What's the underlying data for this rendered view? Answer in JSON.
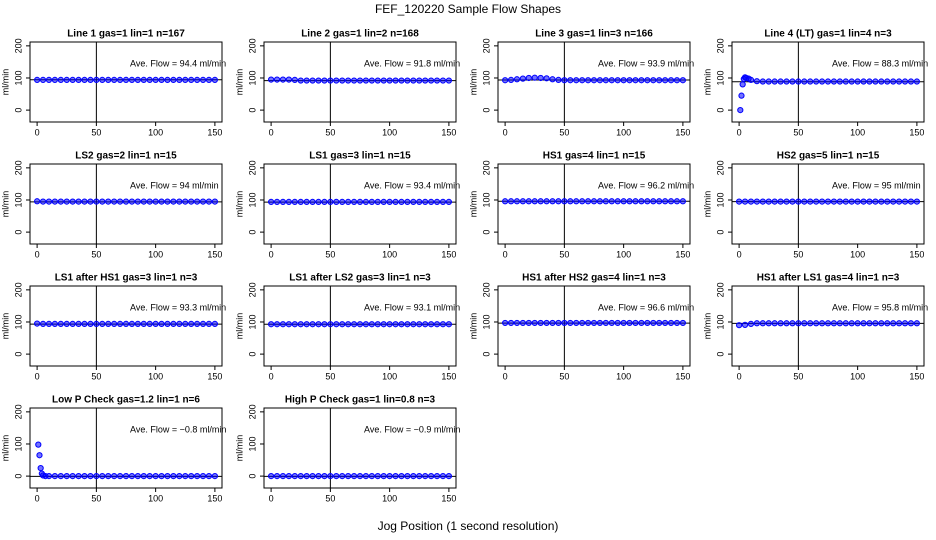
{
  "title": "FEF_120220  Sample Flow Shapes",
  "xlabel": "Jog Position (1 second resolution)",
  "chart_data": [
    {
      "type": "scatter",
      "title": "Line 1 gas=1 lin=1 n=167",
      "annotation": "Ave. Flow = 94.4  ml/min",
      "hline": 94.4,
      "vline": 50,
      "ylabel": "ml/min",
      "color": "#0000ff",
      "x": [
        0,
        5,
        10,
        15,
        20,
        25,
        30,
        35,
        40,
        45,
        50,
        55,
        60,
        65,
        70,
        75,
        80,
        85,
        90,
        95,
        100,
        105,
        110,
        115,
        120,
        125,
        130,
        135,
        140,
        145,
        150
      ],
      "y": [
        94,
        94,
        94,
        94,
        94,
        94,
        94,
        94,
        94,
        94,
        94,
        94,
        94,
        94,
        94,
        94,
        94,
        94,
        94,
        94,
        94,
        94,
        94,
        94,
        94,
        94,
        94,
        94,
        94,
        94,
        94
      ],
      "xlim": [
        -6,
        156
      ],
      "ylim": [
        -37,
        212
      ],
      "xticks": [
        0,
        50,
        100,
        150
      ],
      "yticks": [
        0,
        100,
        200
      ]
    },
    {
      "type": "scatter",
      "title": "Line 2 gas=1 lin=2 n=168",
      "annotation": "Ave. Flow = 91.8  ml/min",
      "hline": 91.8,
      "vline": 50,
      "ylabel": "ml/min",
      "color": "#0000ff",
      "x": [
        0,
        5,
        10,
        15,
        20,
        25,
        30,
        35,
        40,
        45,
        50,
        55,
        60,
        65,
        70,
        75,
        80,
        85,
        90,
        95,
        100,
        105,
        110,
        115,
        120,
        125,
        130,
        135,
        140,
        145,
        150
      ],
      "y": [
        95,
        95,
        95,
        95,
        94,
        92,
        92,
        92,
        92,
        92,
        92,
        92,
        92,
        92,
        92,
        92,
        92,
        92,
        92,
        92,
        92,
        92,
        92,
        92,
        92,
        92,
        92,
        92,
        92,
        92,
        92
      ],
      "xlim": [
        -6,
        156
      ],
      "ylim": [
        -37,
        212
      ],
      "xticks": [
        0,
        50,
        100,
        150
      ],
      "yticks": [
        0,
        100,
        200
      ]
    },
    {
      "type": "scatter",
      "title": "Line 3 gas=1 lin=3 n=166",
      "annotation": "Ave. Flow = 93.9  ml/min",
      "hline": 93.9,
      "vline": 50,
      "ylabel": "ml/min",
      "color": "#0000ff",
      "x": [
        0,
        5,
        10,
        15,
        20,
        25,
        30,
        35,
        40,
        45,
        50,
        55,
        60,
        65,
        70,
        75,
        80,
        85,
        90,
        95,
        100,
        105,
        110,
        115,
        120,
        125,
        130,
        135,
        140,
        145,
        150
      ],
      "y": [
        93,
        94,
        96,
        98,
        100,
        101,
        100,
        99,
        96,
        94,
        93,
        93,
        93,
        93,
        93,
        93,
        93,
        93,
        93,
        93,
        93,
        93,
        93,
        93,
        93,
        93,
        93,
        93,
        93,
        93,
        93
      ],
      "xlim": [
        -6,
        156
      ],
      "ylim": [
        -37,
        212
      ],
      "xticks": [
        0,
        50,
        100,
        150
      ],
      "yticks": [
        0,
        100,
        200
      ]
    },
    {
      "type": "scatter",
      "title": "Line 4 (LT) gas=1 lin=4 n=3",
      "annotation": "Ave. Flow = 88.3  ml/min",
      "hline": 88.3,
      "vline": 50,
      "ylabel": "ml/min",
      "color": "#0000ff",
      "x": [
        1,
        2,
        3,
        4,
        5,
        6,
        8,
        10,
        15,
        20,
        25,
        30,
        35,
        40,
        45,
        50,
        55,
        60,
        65,
        70,
        75,
        80,
        85,
        90,
        95,
        100,
        105,
        110,
        115,
        120,
        125,
        130,
        135,
        140,
        145,
        150
      ],
      "y": [
        0,
        45,
        80,
        97,
        102,
        100,
        98,
        94,
        90,
        89,
        89,
        89,
        89,
        89,
        89,
        89,
        89,
        89,
        89,
        89,
        89,
        89,
        89,
        89,
        89,
        89,
        89,
        89,
        89,
        89,
        89,
        89,
        89,
        89,
        89,
        89
      ],
      "xlim": [
        -6,
        156
      ],
      "ylim": [
        -37,
        212
      ],
      "xticks": [
        0,
        50,
        100,
        150
      ],
      "yticks": [
        0,
        100,
        200
      ]
    },
    {
      "type": "scatter",
      "title": "LS2 gas=2 lin=1 n=15",
      "annotation": "Ave. Flow = 94  ml/min",
      "hline": 94,
      "vline": 50,
      "ylabel": "ml/min",
      "color": "#0000ff",
      "x": [
        0,
        5,
        10,
        15,
        20,
        25,
        30,
        35,
        40,
        45,
        50,
        55,
        60,
        65,
        70,
        75,
        80,
        85,
        90,
        95,
        100,
        105,
        110,
        115,
        120,
        125,
        130,
        135,
        140,
        145,
        150
      ],
      "y": [
        96,
        95,
        95,
        95,
        95,
        95,
        95,
        95,
        95,
        95,
        95,
        95,
        95,
        95,
        95,
        95,
        95,
        95,
        95,
        95,
        95,
        95,
        95,
        95,
        95,
        95,
        95,
        95,
        95,
        95,
        95
      ],
      "xlim": [
        -6,
        156
      ],
      "ylim": [
        -37,
        212
      ],
      "xticks": [
        0,
        50,
        100,
        150
      ],
      "yticks": [
        0,
        100,
        200
      ]
    },
    {
      "type": "scatter",
      "title": "LS1 gas=3 lin=1 n=15",
      "annotation": "Ave. Flow = 93.4  ml/min",
      "hline": 93.4,
      "vline": 50,
      "ylabel": "ml/min",
      "color": "#0000ff",
      "x": [
        0,
        5,
        10,
        15,
        20,
        25,
        30,
        35,
        40,
        45,
        50,
        55,
        60,
        65,
        70,
        75,
        80,
        85,
        90,
        95,
        100,
        105,
        110,
        115,
        120,
        125,
        130,
        135,
        140,
        145,
        150
      ],
      "y": [
        94,
        94,
        94,
        94,
        94,
        94,
        94,
        94,
        94,
        94,
        94,
        94,
        94,
        94,
        94,
        94,
        94,
        94,
        94,
        94,
        94,
        94,
        94,
        94,
        94,
        94,
        94,
        94,
        94,
        94,
        94
      ],
      "xlim": [
        -6,
        156
      ],
      "ylim": [
        -37,
        212
      ],
      "xticks": [
        0,
        50,
        100,
        150
      ],
      "yticks": [
        0,
        100,
        200
      ]
    },
    {
      "type": "scatter",
      "title": "HS1 gas=4 lin=1 n=15",
      "annotation": "Ave. Flow = 96.2  ml/min",
      "hline": 96.2,
      "vline": 50,
      "ylabel": "ml/min",
      "color": "#0000ff",
      "x": [
        0,
        5,
        10,
        15,
        20,
        25,
        30,
        35,
        40,
        45,
        50,
        55,
        60,
        65,
        70,
        75,
        80,
        85,
        90,
        95,
        100,
        105,
        110,
        115,
        120,
        125,
        130,
        135,
        140,
        145,
        150
      ],
      "y": [
        96,
        96,
        96,
        96,
        96,
        96,
        96,
        96,
        96,
        96,
        96,
        96,
        96,
        96,
        96,
        96,
        96,
        96,
        96,
        96,
        96,
        96,
        96,
        96,
        96,
        96,
        96,
        96,
        96,
        96,
        96
      ],
      "xlim": [
        -6,
        156
      ],
      "ylim": [
        -37,
        212
      ],
      "xticks": [
        0,
        50,
        100,
        150
      ],
      "yticks": [
        0,
        100,
        200
      ]
    },
    {
      "type": "scatter",
      "title": "HS2 gas=5 lin=1 n=15",
      "annotation": "Ave. Flow = 95  ml/min",
      "hline": 95,
      "vline": 50,
      "ylabel": "ml/min",
      "color": "#0000ff",
      "x": [
        0,
        5,
        10,
        15,
        20,
        25,
        30,
        35,
        40,
        45,
        50,
        55,
        60,
        65,
        70,
        75,
        80,
        85,
        90,
        95,
        100,
        105,
        110,
        115,
        120,
        125,
        130,
        135,
        140,
        145,
        150
      ],
      "y": [
        95,
        95,
        95,
        95,
        95,
        95,
        95,
        95,
        95,
        95,
        95,
        95,
        95,
        95,
        95,
        95,
        95,
        95,
        95,
        95,
        95,
        95,
        95,
        95,
        95,
        95,
        95,
        95,
        95,
        95,
        95
      ],
      "xlim": [
        -6,
        156
      ],
      "ylim": [
        -37,
        212
      ],
      "xticks": [
        0,
        50,
        100,
        150
      ],
      "yticks": [
        0,
        100,
        200
      ]
    },
    {
      "type": "scatter",
      "title": "LS1 after HS1 gas=3 lin=1 n=3",
      "annotation": "Ave. Flow = 93.3  ml/min",
      "hline": 93.3,
      "vline": 50,
      "ylabel": "ml/min",
      "color": "#0000ff",
      "x": [
        0,
        5,
        10,
        15,
        20,
        25,
        30,
        35,
        40,
        45,
        50,
        55,
        60,
        65,
        70,
        75,
        80,
        85,
        90,
        95,
        100,
        105,
        110,
        115,
        120,
        125,
        130,
        135,
        140,
        145,
        150
      ],
      "y": [
        95,
        94,
        94,
        94,
        94,
        94,
        94,
        94,
        94,
        94,
        94,
        94,
        94,
        94,
        94,
        94,
        94,
        94,
        94,
        94,
        94,
        94,
        94,
        94,
        94,
        94,
        94,
        94,
        94,
        94,
        94
      ],
      "xlim": [
        -6,
        156
      ],
      "ylim": [
        -37,
        212
      ],
      "xticks": [
        0,
        50,
        100,
        150
      ],
      "yticks": [
        0,
        100,
        200
      ]
    },
    {
      "type": "scatter",
      "title": "LS1 after LS2 gas=3 lin=1 n=3",
      "annotation": "Ave. Flow = 93.1  ml/min",
      "hline": 93.1,
      "vline": 50,
      "ylabel": "ml/min",
      "color": "#0000ff",
      "x": [
        0,
        5,
        10,
        15,
        20,
        25,
        30,
        35,
        40,
        45,
        50,
        55,
        60,
        65,
        70,
        75,
        80,
        85,
        90,
        95,
        100,
        105,
        110,
        115,
        120,
        125,
        130,
        135,
        140,
        145,
        150
      ],
      "y": [
        93,
        93,
        93,
        93,
        93,
        93,
        93,
        93,
        93,
        93,
        93,
        93,
        93,
        93,
        93,
        93,
        93,
        93,
        93,
        93,
        93,
        93,
        93,
        93,
        93,
        93,
        93,
        93,
        93,
        93,
        93
      ],
      "xlim": [
        -6,
        156
      ],
      "ylim": [
        -37,
        212
      ],
      "xticks": [
        0,
        50,
        100,
        150
      ],
      "yticks": [
        0,
        100,
        200
      ]
    },
    {
      "type": "scatter",
      "title": "HS1 after HS2 gas=4 lin=1 n=3",
      "annotation": "Ave. Flow = 96.6  ml/min",
      "hline": 96.6,
      "vline": 50,
      "ylabel": "ml/min",
      "color": "#0000ff",
      "x": [
        0,
        5,
        10,
        15,
        20,
        25,
        30,
        35,
        40,
        45,
        50,
        55,
        60,
        65,
        70,
        75,
        80,
        85,
        90,
        95,
        100,
        105,
        110,
        115,
        120,
        125,
        130,
        135,
        140,
        145,
        150
      ],
      "y": [
        97,
        97,
        97,
        97,
        97,
        97,
        97,
        97,
        97,
        97,
        97,
        97,
        97,
        97,
        97,
        97,
        97,
        97,
        97,
        97,
        97,
        97,
        97,
        97,
        97,
        97,
        97,
        97,
        97,
        97,
        97
      ],
      "xlim": [
        -6,
        156
      ],
      "ylim": [
        -37,
        212
      ],
      "xticks": [
        0,
        50,
        100,
        150
      ],
      "yticks": [
        0,
        100,
        200
      ]
    },
    {
      "type": "scatter",
      "title": "HS1 after LS1 gas=4 lin=1 n=3",
      "annotation": "Ave. Flow = 95.8  ml/min",
      "hline": 95.8,
      "vline": 50,
      "ylabel": "ml/min",
      "color": "#0000ff",
      "x": [
        0,
        5,
        10,
        15,
        20,
        25,
        30,
        35,
        40,
        45,
        50,
        55,
        60,
        65,
        70,
        75,
        80,
        85,
        90,
        95,
        100,
        105,
        110,
        115,
        120,
        125,
        130,
        135,
        140,
        145,
        150
      ],
      "y": [
        90,
        91,
        94,
        96,
        96,
        96,
        96,
        96,
        96,
        96,
        96,
        96,
        96,
        96,
        96,
        96,
        96,
        96,
        96,
        96,
        96,
        96,
        96,
        96,
        96,
        96,
        96,
        96,
        96,
        96,
        96
      ],
      "xlim": [
        -6,
        156
      ],
      "ylim": [
        -37,
        212
      ],
      "xticks": [
        0,
        50,
        100,
        150
      ],
      "yticks": [
        0,
        100,
        200
      ]
    },
    {
      "type": "scatter",
      "title": "Low P Check gas=1.2 lin=1 n=6",
      "annotation": "Ave. Flow = −0.8  ml/min",
      "hline": -0.8,
      "vline": 50,
      "ylabel": "ml/min",
      "color": "#0000ff",
      "x": [
        1,
        2,
        3,
        4,
        5,
        7,
        10,
        15,
        20,
        25,
        30,
        35,
        40,
        45,
        50,
        55,
        60,
        65,
        70,
        75,
        80,
        85,
        90,
        95,
        100,
        105,
        110,
        115,
        120,
        125,
        130,
        135,
        140,
        145,
        150
      ],
      "y": [
        98,
        65,
        25,
        8,
        2,
        0,
        0,
        0,
        0,
        0,
        0,
        0,
        0,
        0,
        0,
        0,
        0,
        0,
        0,
        0,
        0,
        0,
        0,
        0,
        0,
        0,
        0,
        0,
        0,
        0,
        0,
        0,
        0,
        0,
        0
      ],
      "xlim": [
        -6,
        156
      ],
      "ylim": [
        -37,
        212
      ],
      "xticks": [
        0,
        50,
        100,
        150
      ],
      "yticks": [
        0,
        100,
        200
      ]
    },
    {
      "type": "scatter",
      "title": "High P Check gas=1 lin=0.8 n=3",
      "annotation": "Ave. Flow = −0.9  ml/min",
      "hline": -0.9,
      "vline": 50,
      "ylabel": "ml/min",
      "color": "#0000ff",
      "x": [
        0,
        5,
        10,
        15,
        20,
        25,
        30,
        35,
        40,
        45,
        50,
        55,
        60,
        65,
        70,
        75,
        80,
        85,
        90,
        95,
        100,
        105,
        110,
        115,
        120,
        125,
        130,
        135,
        140,
        145,
        150
      ],
      "y": [
        0,
        0,
        0,
        0,
        0,
        0,
        0,
        0,
        0,
        0,
        0,
        0,
        0,
        0,
        0,
        0,
        0,
        0,
        0,
        0,
        0,
        0,
        0,
        0,
        0,
        0,
        0,
        0,
        0,
        0,
        0
      ],
      "xlim": [
        -6,
        156
      ],
      "ylim": [
        -37,
        212
      ],
      "xticks": [
        0,
        50,
        100,
        150
      ],
      "yticks": [
        0,
        100,
        200
      ]
    }
  ]
}
